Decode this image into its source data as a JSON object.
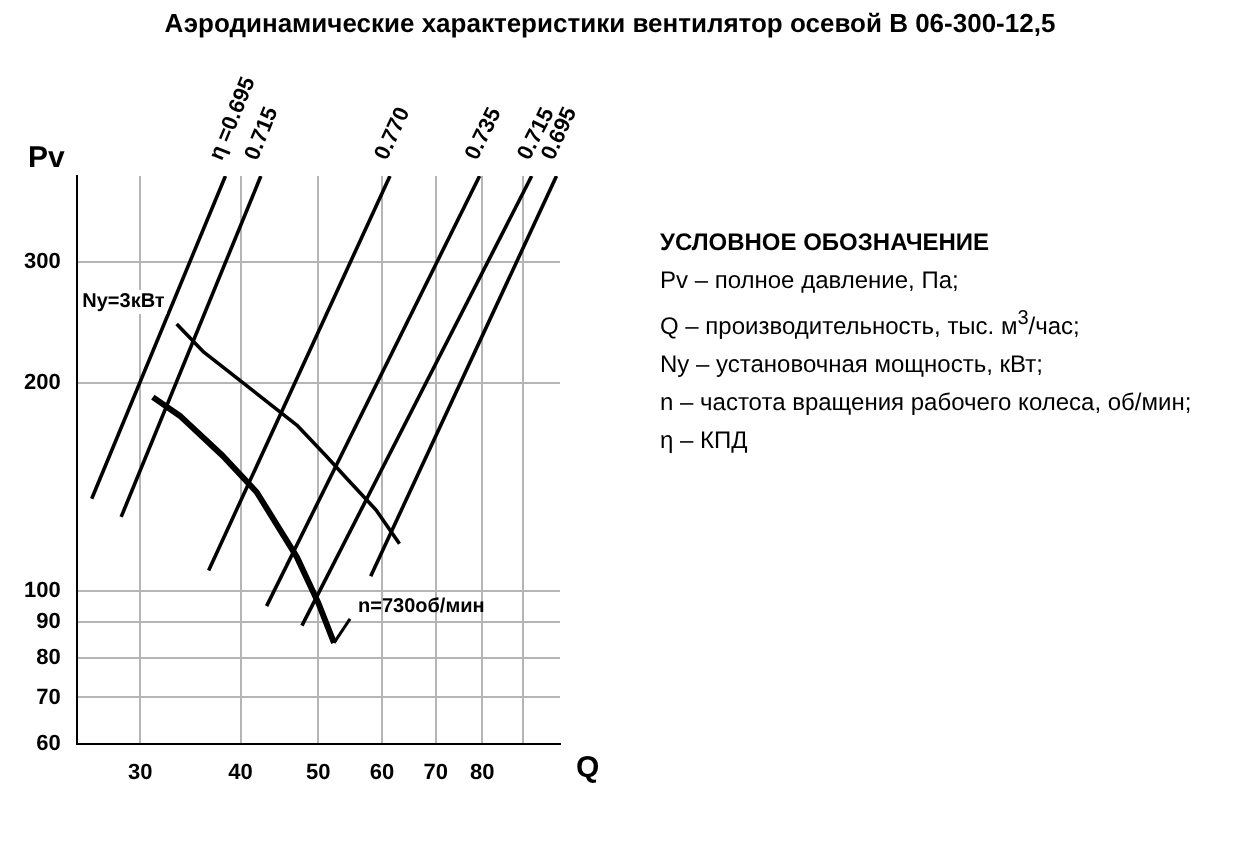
{
  "chart_data": {
    "type": "line",
    "title": "Аэродинамические характеристики вентилятор осевой В 06-300-12,5",
    "xlabel": "Q",
    "ylabel": "Pv",
    "log": "xy",
    "grid": true,
    "legend": false,
    "marker": "none",
    "line_style": "solid",
    "xlim": [
      25,
      100
    ],
    "xticks": [
      30,
      40,
      50,
      60,
      70,
      80,
      {
        "value": 90,
        "label": null
      }
    ],
    "ylim": [
      60,
      400
    ],
    "yticks": [
      60,
      70,
      80,
      90,
      100,
      200,
      300
    ],
    "series": [
      {
        "name": "η =0.695",
        "color": "#000000",
        "x": [
          26.1,
          38.3
        ],
        "values": [
          136,
          400
        ]
      },
      {
        "name": "0.715",
        "color": "#000000",
        "x": [
          28.4,
          42.4
        ],
        "values": [
          128,
          400
        ]
      },
      {
        "name": "0.770",
        "color": "#000000",
        "x": [
          36.5,
          61.4
        ],
        "values": [
          107,
          400
        ]
      },
      {
        "name": "0.735",
        "color": "#000000",
        "x": [
          43.1,
          79.4
        ],
        "values": [
          95,
          400
        ]
      },
      {
        "name": "0.715",
        "color": "#000000",
        "x": [
          47.7,
          92.2
        ],
        "values": [
          89,
          400
        ]
      },
      {
        "name": "0.695",
        "color": "#000000",
        "x": [
          58.1,
          99
        ],
        "values": [
          105,
          400
        ]
      },
      {
        "color": "#000000",
        "x": [
          31.1,
          33.7,
          38,
          41.9,
          47,
          50,
          52.3
        ],
        "values": [
          191,
          179,
          157,
          139,
          112,
          96,
          84
        ]
      },
      {
        "color": "#000000",
        "x": [
          33.3,
          36,
          47,
          51.1,
          54.1,
          59,
          63.1
        ],
        "values": [
          244,
          222,
          174,
          157,
          146,
          131,
          117
        ]
      }
    ],
    "annotations": [
      {
        "text": "Ny=3кВт",
        "x": 33.3,
        "y": 244
      },
      {
        "text": "n=730об/мин",
        "x": 52.3,
        "y": 84
      },
      "УСЛОВНОЕ ОБОЗНАЧЕНИЕ",
      "Pv – полное давление, Па;",
      "Q – производительность, тыс. м$^{3}$/час;",
      "Ny – установочная мощность, кВт;",
      "n – частота вращения рабочего колеса, об/мин;",
      "η – КПД"
    ]
  }
}
